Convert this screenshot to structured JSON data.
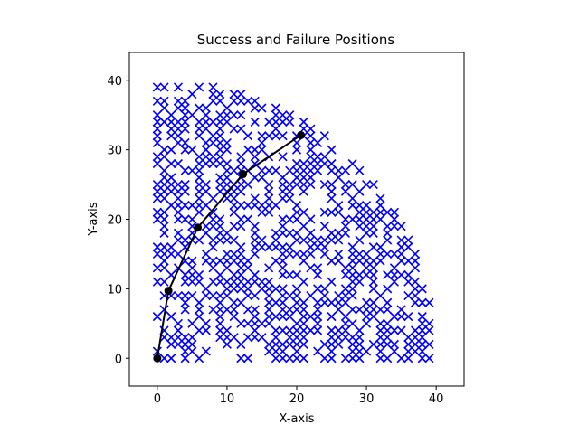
{
  "chart_data": {
    "type": "scatter",
    "title": "Success and Failure Positions",
    "xlabel": "X-axis",
    "ylabel": "Y-axis",
    "xlim": [
      -4,
      44
    ],
    "ylim": [
      -4,
      44
    ],
    "xticks": [
      0,
      10,
      20,
      30,
      40
    ],
    "yticks": [
      0,
      10,
      20,
      30,
      40
    ],
    "grid": false,
    "legend": "none",
    "failure_marker": "x",
    "failure_color": "#0000ff",
    "failure_region": {
      "xmin": 0,
      "xmax": 39,
      "ymin": 0,
      "ymax": 39,
      "boundary_radius": 40,
      "fill_fraction": 0.55
    },
    "path": {
      "color": "#000000",
      "marker": "o",
      "x": [
        0,
        1.6,
        5.8,
        12.3,
        20.6
      ],
      "y": [
        0,
        9.7,
        18.8,
        26.5,
        32.1
      ]
    }
  }
}
